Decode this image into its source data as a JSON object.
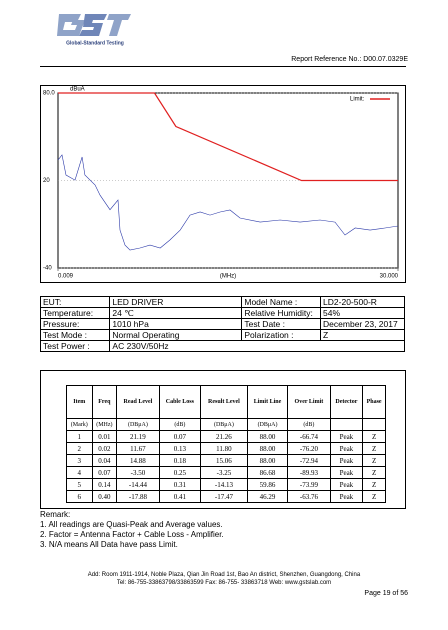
{
  "header": {
    "logo_text": "Global-Standard Testing",
    "report_reference": "Report Reference No.: D00.07.0329E"
  },
  "chart_data": {
    "type": "line",
    "y_unit": "dBuA",
    "x_unit": "(MHz)",
    "log_x": true,
    "grid": true,
    "xlim": [
      0.009,
      30
    ],
    "xticks": [
      {
        "value": 0.009,
        "label": "0.009"
      },
      {
        "value": 30,
        "label": "30.000"
      }
    ],
    "ylim": [
      -40,
      80
    ],
    "yticks": [
      {
        "value": -40,
        "label": "-40"
      },
      20,
      {
        "value": 80,
        "label": "80.0"
      }
    ],
    "legend": "top-right",
    "series": [
      {
        "name": "Limit:",
        "color": "#e02020",
        "x": [
          0.009,
          0.09,
          0.15,
          3,
          30
        ],
        "values": [
          80,
          80,
          57,
          20,
          20
        ]
      },
      {
        "color": "#2a38a8",
        "x": [
          0.009,
          0.0099,
          0.0109,
          0.0135,
          0.016,
          0.0171,
          0.0218,
          0.0245,
          0.0311,
          0.0377,
          0.0395,
          0.0445,
          0.0501,
          0.0637,
          0.0808,
          0.103,
          0.13,
          0.166,
          0.21,
          0.267,
          0.338,
          0.43,
          0.545,
          0.692,
          1.12,
          1.8,
          2.9,
          4.67,
          6.68,
          8.48,
          10.8,
          15.4,
          22,
          30
        ],
        "values": [
          34,
          37.5,
          23.8,
          20.3,
          36.1,
          23.8,
          16.9,
          10,
          0,
          6.6,
          -14,
          -24.3,
          -27.7,
          -26.3,
          -24.3,
          -26.3,
          -20.8,
          -14,
          -3.7,
          -1.6,
          -3.7,
          -1.6,
          -0.2,
          -5.7,
          -8.5,
          -7.1,
          -8.5,
          -7.1,
          -8.5,
          -17.4,
          -12.6,
          -14,
          -12.6,
          -11.2
        ]
      }
    ]
  },
  "info_table": {
    "rows": [
      [
        "EUT:",
        "LED DRIVER",
        "Model Name :",
        "LD2-20-500-R"
      ],
      [
        "Temperature:",
        "24 ℃",
        "Relative Humidity:",
        "54%"
      ],
      [
        "Pressure:",
        "1010 hPa",
        "Test Date :",
        "December 23, 2017"
      ],
      [
        "Test Mode :",
        "Normal Operating",
        "Polarization :",
        "Z"
      ],
      [
        "Test Power :",
        "AC 230V/50Hz"
      ]
    ]
  },
  "results_table": {
    "header": [
      "Item",
      "Freq",
      "Read Level",
      "Cable Loss",
      "Result Level",
      "Limit Line",
      "Over Limit",
      "Detector",
      "Phase"
    ],
    "units": [
      "(Mark)",
      "(MHz)",
      "(DBμA)",
      "(dB)",
      "(DBμA)",
      "(DBμA)",
      "(dB)"
    ],
    "rows": [
      [
        "1",
        "0.01",
        "21.19",
        "0.07",
        "21.26",
        "88.00",
        "-66.74",
        "Peak",
        "Z"
      ],
      [
        "2",
        "0.02",
        "11.67",
        "0.13",
        "11.80",
        "88.00",
        "-76.20",
        "Peak",
        "Z"
      ],
      [
        "3",
        "0.04",
        "14.88",
        "0.18",
        "15.06",
        "88.00",
        "-72.94",
        "Peak",
        "Z"
      ],
      [
        "4",
        "0.07",
        "-3.50",
        "0.25",
        "-3.25",
        "86.68",
        "-89.93",
        "Peak",
        "Z"
      ],
      [
        "5",
        "0.14",
        "-14.44",
        "0.31",
        "-14.13",
        "59.86",
        "-73.99",
        "Peak",
        "Z"
      ],
      [
        "6",
        "0.40",
        "-17.88",
        "0.41",
        "-17.47",
        "46.29",
        "-63.76",
        "Peak",
        "Z"
      ]
    ]
  },
  "remarks": [
    "Remark:",
    "1. All readings are Quasi-Peak and Average values.",
    "2. Factor = Antenna Factor + Cable Loss - Amplifier.",
    "3. N/A means All Data have pass Limit."
  ],
  "footer": {
    "address": "Add: Room 1911-1914, Noble Plaza, Qian Jin Road 1st, Bao An district, Shenzhen, Guangdong, China",
    "contact": "Tel: 86-755-33863798/33863599    Fax: 86-755- 33863718    Web: www.gstslab.com",
    "page": "Page 19 of 56"
  }
}
